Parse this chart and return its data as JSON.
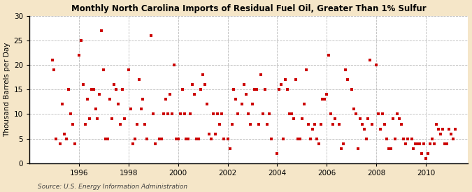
{
  "title": "Monthly North Carolina Imports of Residual Fuel Oil, Greater Than 1% Sulfur",
  "ylabel": "Thousand Barrels per Day",
  "source": "Source: U.S. Energy Information Administration",
  "outer_bg": "#f5e6c8",
  "plot_bg": "#ffffff",
  "marker_color": "#cc0000",
  "xlim_min": 1994.0,
  "xlim_max": 2011.7,
  "ylim_min": 0,
  "ylim_max": 30,
  "yticks": [
    0,
    5,
    10,
    15,
    20,
    25,
    30
  ],
  "xticks": [
    1996,
    1998,
    2000,
    2002,
    2004,
    2006,
    2008,
    2010
  ],
  "data_x": [
    1994.917,
    1995.0,
    1995.083,
    1995.25,
    1995.333,
    1995.417,
    1995.5,
    1995.583,
    1995.667,
    1995.75,
    1995.833,
    1995.917,
    1996.0,
    1996.083,
    1996.167,
    1996.25,
    1996.333,
    1996.417,
    1996.5,
    1996.583,
    1996.667,
    1996.75,
    1996.833,
    1996.917,
    1997.0,
    1997.083,
    1997.167,
    1997.25,
    1997.333,
    1997.417,
    1997.5,
    1997.583,
    1997.667,
    1997.75,
    1997.833,
    1997.917,
    1998.0,
    1998.083,
    1998.167,
    1998.25,
    1998.333,
    1998.417,
    1998.5,
    1998.583,
    1998.667,
    1998.75,
    1998.833,
    1998.917,
    1999.0,
    1999.083,
    1999.167,
    1999.25,
    1999.333,
    1999.417,
    1999.5,
    1999.583,
    1999.667,
    1999.75,
    1999.833,
    1999.917,
    2000.0,
    2000.083,
    2000.167,
    2000.25,
    2000.333,
    2000.417,
    2000.5,
    2000.583,
    2000.667,
    2000.75,
    2000.833,
    2000.917,
    2001.0,
    2001.083,
    2001.167,
    2001.25,
    2001.333,
    2001.417,
    2001.5,
    2001.583,
    2001.667,
    2001.75,
    2001.833,
    2001.917,
    2002.0,
    2002.083,
    2002.167,
    2002.25,
    2002.333,
    2002.417,
    2002.5,
    2002.583,
    2002.667,
    2002.75,
    2002.833,
    2002.917,
    2003.0,
    2003.083,
    2003.167,
    2003.25,
    2003.333,
    2003.417,
    2003.5,
    2003.583,
    2003.667,
    2003.75,
    2003.833,
    2003.917,
    2004.0,
    2004.083,
    2004.167,
    2004.25,
    2004.333,
    2004.417,
    2004.5,
    2004.583,
    2004.667,
    2004.75,
    2004.833,
    2004.917,
    2005.0,
    2005.083,
    2005.167,
    2005.25,
    2005.333,
    2005.417,
    2005.5,
    2005.583,
    2005.667,
    2005.75,
    2005.833,
    2005.917,
    2006.0,
    2006.083,
    2006.167,
    2006.25,
    2006.333,
    2006.417,
    2006.5,
    2006.583,
    2006.667,
    2006.75,
    2006.833,
    2006.917,
    2007.0,
    2007.083,
    2007.167,
    2007.25,
    2007.333,
    2007.417,
    2007.5,
    2007.583,
    2007.667,
    2007.75,
    2007.833,
    2007.917,
    2008.0,
    2008.083,
    2008.167,
    2008.25,
    2008.333,
    2008.417,
    2008.5,
    2008.583,
    2008.667,
    2008.75,
    2008.833,
    2008.917,
    2009.0,
    2009.083,
    2009.167,
    2009.25,
    2009.333,
    2009.417,
    2009.5,
    2009.583,
    2009.667,
    2009.75,
    2009.833,
    2009.917,
    2010.0,
    2010.083,
    2010.167,
    2010.25,
    2010.333,
    2010.417,
    2010.5,
    2010.583,
    2010.667,
    2010.75,
    2010.833,
    2010.917,
    2011.0,
    2011.083,
    2011.167
  ],
  "data_y": [
    21,
    19,
    5,
    4,
    12,
    6,
    5,
    15,
    10,
    8,
    4,
    null,
    22,
    25,
    16,
    8,
    13,
    9,
    15,
    15,
    11,
    9,
    14,
    27,
    19,
    5,
    5,
    13,
    9,
    16,
    15,
    12,
    8,
    15,
    9,
    null,
    19,
    11,
    4,
    5,
    8,
    17,
    11,
    13,
    8,
    5,
    null,
    26,
    10,
    4,
    null,
    5,
    5,
    10,
    13,
    10,
    14,
    10,
    20,
    5,
    5,
    10,
    15,
    10,
    5,
    5,
    10,
    16,
    14,
    5,
    5,
    15,
    18,
    16,
    12,
    6,
    5,
    10,
    6,
    10,
    8,
    10,
    5,
    null,
    5,
    3,
    8,
    15,
    13,
    10,
    null,
    12,
    16,
    14,
    10,
    8,
    12,
    15,
    15,
    8,
    18,
    10,
    15,
    8,
    10,
    5,
    null,
    null,
    2,
    15,
    16,
    5,
    17,
    15,
    10,
    10,
    9,
    17,
    5,
    5,
    9,
    12,
    19,
    8,
    5,
    7,
    8,
    5,
    4,
    8,
    13,
    13,
    14,
    22,
    10,
    8,
    9,
    null,
    8,
    3,
    4,
    19,
    17,
    null,
    15,
    11,
    10,
    3,
    9,
    8,
    7,
    5,
    9,
    21,
    8,
    null,
    20,
    10,
    7,
    10,
    8,
    5,
    3,
    3,
    9,
    5,
    10,
    9,
    8,
    5,
    4,
    5,
    null,
    5,
    3,
    4,
    4,
    4,
    2,
    4,
    1,
    2,
    4,
    5,
    4,
    8,
    7,
    6,
    7,
    4,
    4,
    7,
    6,
    5,
    7
  ]
}
